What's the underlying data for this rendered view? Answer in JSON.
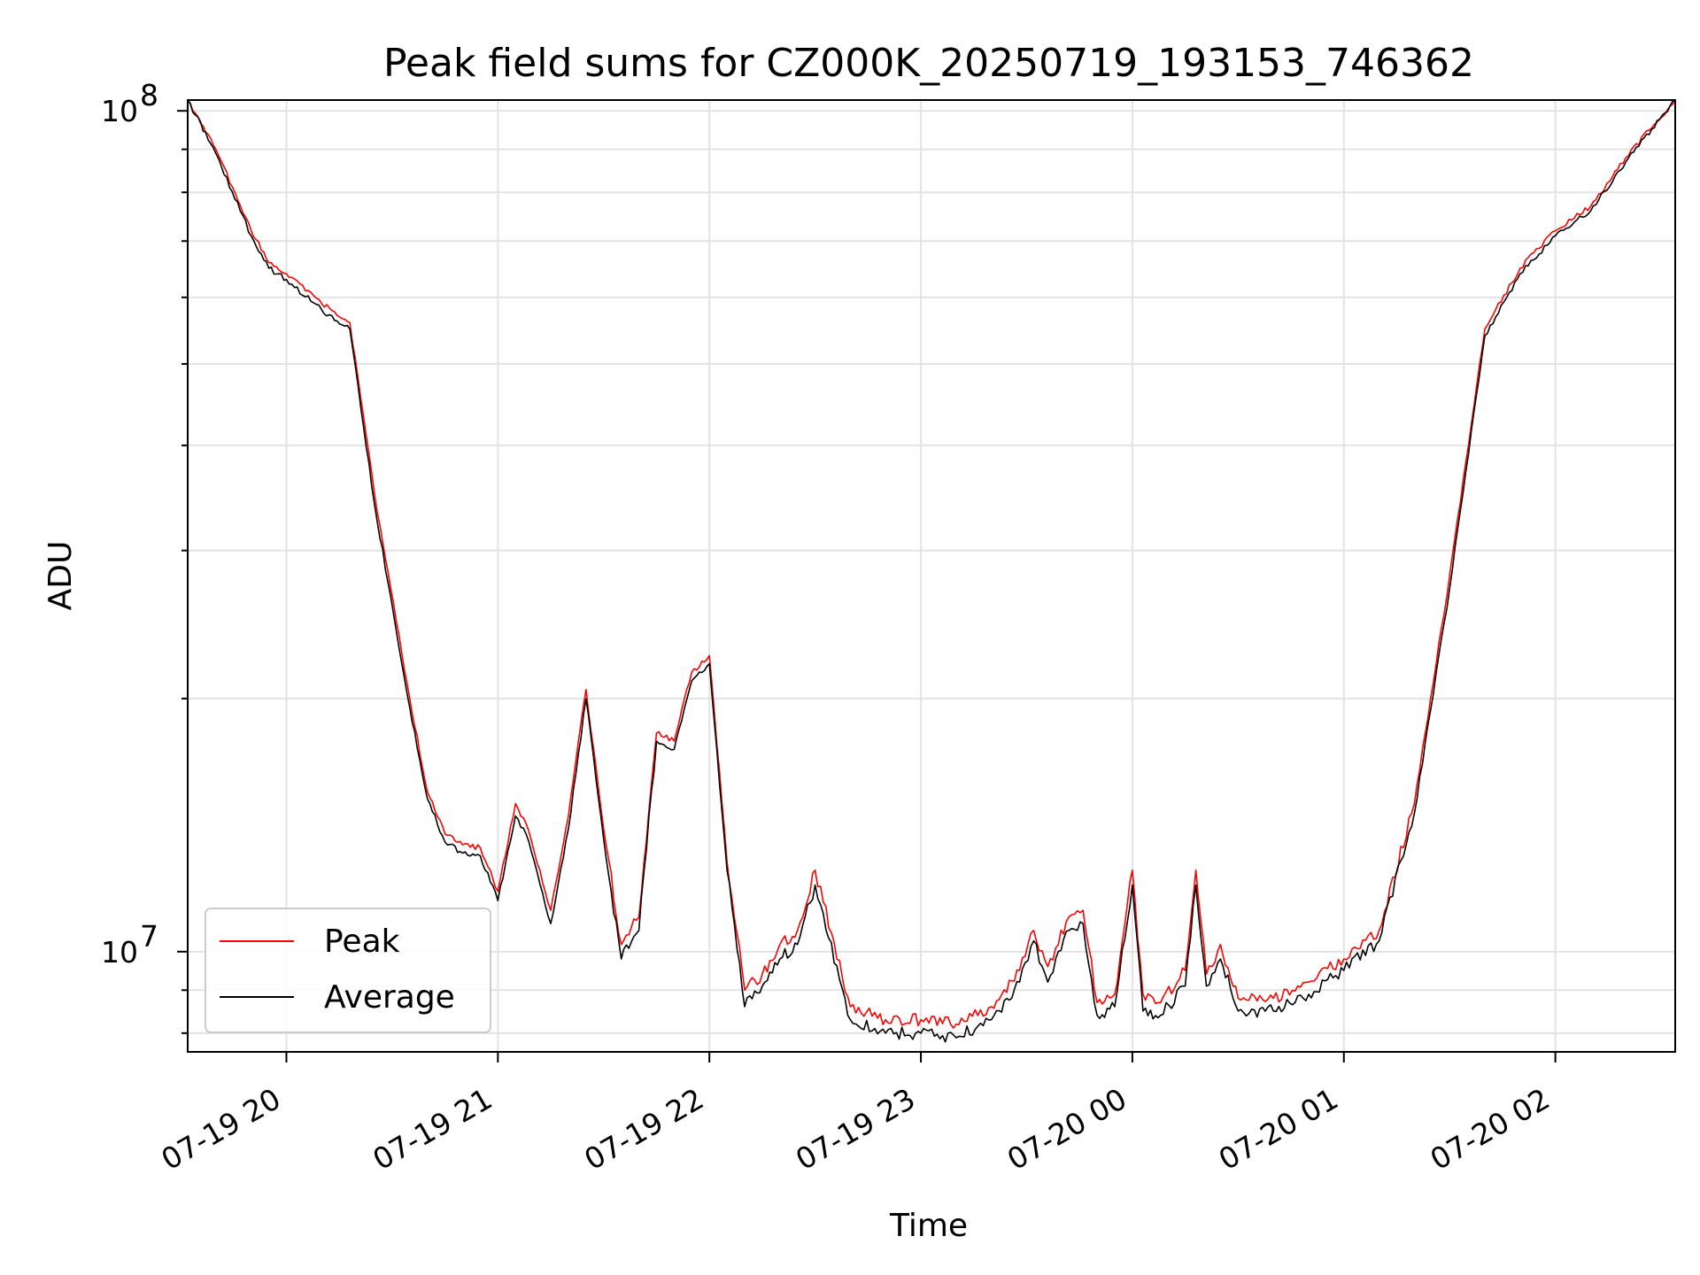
{
  "chart_data": {
    "type": "line",
    "title": "Peak field sums for CZ000K_20250719_193153_746362",
    "xlabel": "Time",
    "ylabel": "ADU",
    "yscale": "log",
    "ylim": [
      7600000.0,
      103000000.0
    ],
    "xlim": [
      "2025-07-19T19:32",
      "2025-07-20T02:34"
    ],
    "grid": true,
    "legend_position": "lower-left",
    "x_ticks": [
      "07-19 20",
      "07-19 21",
      "07-19 22",
      "07-19 23",
      "07-20 00",
      "07-20 01",
      "07-20 02"
    ],
    "y_ticks": [
      {
        "base": "10",
        "exp": "7"
      },
      {
        "base": "10",
        "exp": "8"
      }
    ],
    "series": [
      {
        "name": "Peak",
        "color": "#ff0000",
        "x": [
          "2025-07-19T19:32",
          "2025-07-19T19:40",
          "2025-07-19T19:50",
          "2025-07-19T19:55",
          "2025-07-19T20:00",
          "2025-07-19T20:10",
          "2025-07-19T20:18",
          "2025-07-19T20:25",
          "2025-07-19T20:35",
          "2025-07-19T20:40",
          "2025-07-19T20:45",
          "2025-07-19T20:50",
          "2025-07-19T20:55",
          "2025-07-19T21:00",
          "2025-07-19T21:05",
          "2025-07-19T21:08",
          "2025-07-19T21:15",
          "2025-07-19T21:20",
          "2025-07-19T21:25",
          "2025-07-19T21:30",
          "2025-07-19T21:35",
          "2025-07-19T21:40",
          "2025-07-19T21:45",
          "2025-07-19T21:50",
          "2025-07-19T21:55",
          "2025-07-19T22:00",
          "2025-07-19T22:05",
          "2025-07-19T22:10",
          "2025-07-19T22:15",
          "2025-07-19T22:20",
          "2025-07-19T22:25",
          "2025-07-19T22:30",
          "2025-07-19T22:40",
          "2025-07-19T22:50",
          "2025-07-19T23:00",
          "2025-07-19T23:10",
          "2025-07-19T23:20",
          "2025-07-19T23:28",
          "2025-07-19T23:32",
          "2025-07-19T23:36",
          "2025-07-19T23:42",
          "2025-07-19T23:46",
          "2025-07-19T23:50",
          "2025-07-19T23:55",
          "2025-07-20T00:00",
          "2025-07-20T00:03",
          "2025-07-20T00:08",
          "2025-07-20T00:15",
          "2025-07-20T00:18",
          "2025-07-20T00:21",
          "2025-07-20T00:25",
          "2025-07-20T00:30",
          "2025-07-20T00:40",
          "2025-07-20T00:50",
          "2025-07-20T01:00",
          "2025-07-20T01:10",
          "2025-07-20T01:20",
          "2025-07-20T01:30",
          "2025-07-20T01:40",
          "2025-07-20T01:50",
          "2025-07-20T02:00",
          "2025-07-20T02:10",
          "2025-07-20T02:20",
          "2025-07-20T02:34"
        ],
        "y": [
          103000000.0,
          90000000.0,
          72000000.0,
          66000000.0,
          64000000.0,
          59000000.0,
          56000000.0,
          35000000.0,
          20000000.0,
          15500000.0,
          13800000.0,
          13400000.0,
          13300000.0,
          11800000.0,
          15000000.0,
          14200000.0,
          11200000.0,
          14500000.0,
          20500000.0,
          14000000.0,
          10200000.0,
          11000000.0,
          18200000.0,
          17800000.0,
          21500000.0,
          22500000.0,
          12800000.0,
          9000000.0,
          9400000.0,
          10200000.0,
          10600000.0,
          12500000.0,
          8600000.0,
          8300000.0,
          8300000.0,
          8200000.0,
          8600000.0,
          9500000.0,
          10600000.0,
          9600000.0,
          11000000.0,
          11200000.0,
          8700000.0,
          8900000.0,
          12500000.0,
          8900000.0,
          8700000.0,
          9500000.0,
          12500000.0,
          9400000.0,
          10200000.0,
          8800000.0,
          8800000.0,
          9200000.0,
          9800000.0,
          10600000.0,
          15000000.0,
          28000000.0,
          55000000.0,
          65000000.0,
          72000000.0,
          77000000.0,
          88000000.0,
          103000000.0
        ]
      },
      {
        "name": "Average",
        "color": "#000000",
        "x": [
          "2025-07-19T19:32",
          "2025-07-19T19:40",
          "2025-07-19T19:50",
          "2025-07-19T19:55",
          "2025-07-19T20:00",
          "2025-07-19T20:10",
          "2025-07-19T20:18",
          "2025-07-19T20:25",
          "2025-07-19T20:35",
          "2025-07-19T20:40",
          "2025-07-19T20:45",
          "2025-07-19T20:50",
          "2025-07-19T20:55",
          "2025-07-19T21:00",
          "2025-07-19T21:05",
          "2025-07-19T21:08",
          "2025-07-19T21:15",
          "2025-07-19T21:20",
          "2025-07-19T21:25",
          "2025-07-19T21:30",
          "2025-07-19T21:35",
          "2025-07-19T21:40",
          "2025-07-19T21:45",
          "2025-07-19T21:50",
          "2025-07-19T21:55",
          "2025-07-19T22:00",
          "2025-07-19T22:05",
          "2025-07-19T22:10",
          "2025-07-19T22:15",
          "2025-07-19T22:20",
          "2025-07-19T22:25",
          "2025-07-19T22:30",
          "2025-07-19T22:40",
          "2025-07-19T22:50",
          "2025-07-19T23:00",
          "2025-07-19T23:10",
          "2025-07-19T23:20",
          "2025-07-19T23:28",
          "2025-07-19T23:32",
          "2025-07-19T23:36",
          "2025-07-19T23:42",
          "2025-07-19T23:46",
          "2025-07-19T23:50",
          "2025-07-19T23:55",
          "2025-07-20T00:00",
          "2025-07-20T00:03",
          "2025-07-20T00:08",
          "2025-07-20T00:15",
          "2025-07-20T00:18",
          "2025-07-20T00:21",
          "2025-07-20T00:25",
          "2025-07-20T00:30",
          "2025-07-20T00:40",
          "2025-07-20T00:50",
          "2025-07-20T01:00",
          "2025-07-20T01:10",
          "2025-07-20T01:20",
          "2025-07-20T01:30",
          "2025-07-20T01:40",
          "2025-07-20T01:50",
          "2025-07-20T02:00",
          "2025-07-20T02:10",
          "2025-07-20T02:20",
          "2025-07-20T02:34"
        ],
        "y": [
          103000000.0,
          89000000.0,
          71000000.0,
          65000000.0,
          63000000.0,
          58000000.0,
          55000000.0,
          34000000.0,
          19500000.0,
          15200000.0,
          13500000.0,
          13100000.0,
          13000000.0,
          11500000.0,
          14500000.0,
          13800000.0,
          10800000.0,
          14000000.0,
          20000000.0,
          13600000.0,
          9800000.0,
          10600000.0,
          17800000.0,
          17400000.0,
          21000000.0,
          22000000.0,
          12500000.0,
          8600000.0,
          9100000.0,
          9800000.0,
          10200000.0,
          12000000.0,
          8300000.0,
          8000000.0,
          8000000.0,
          7900000.0,
          8300000.0,
          9200000.0,
          10300000.0,
          9200000.0,
          10600000.0,
          10800000.0,
          8400000.0,
          8600000.0,
          12000000.0,
          8500000.0,
          8400000.0,
          9100000.0,
          12000000.0,
          9100000.0,
          9800000.0,
          8500000.0,
          8500000.0,
          8900000.0,
          9500000.0,
          10300000.0,
          14600000.0,
          27000000.0,
          54000000.0,
          64000000.0,
          71000000.0,
          76000000.0,
          87000000.0,
          103000000.0
        ]
      }
    ]
  }
}
